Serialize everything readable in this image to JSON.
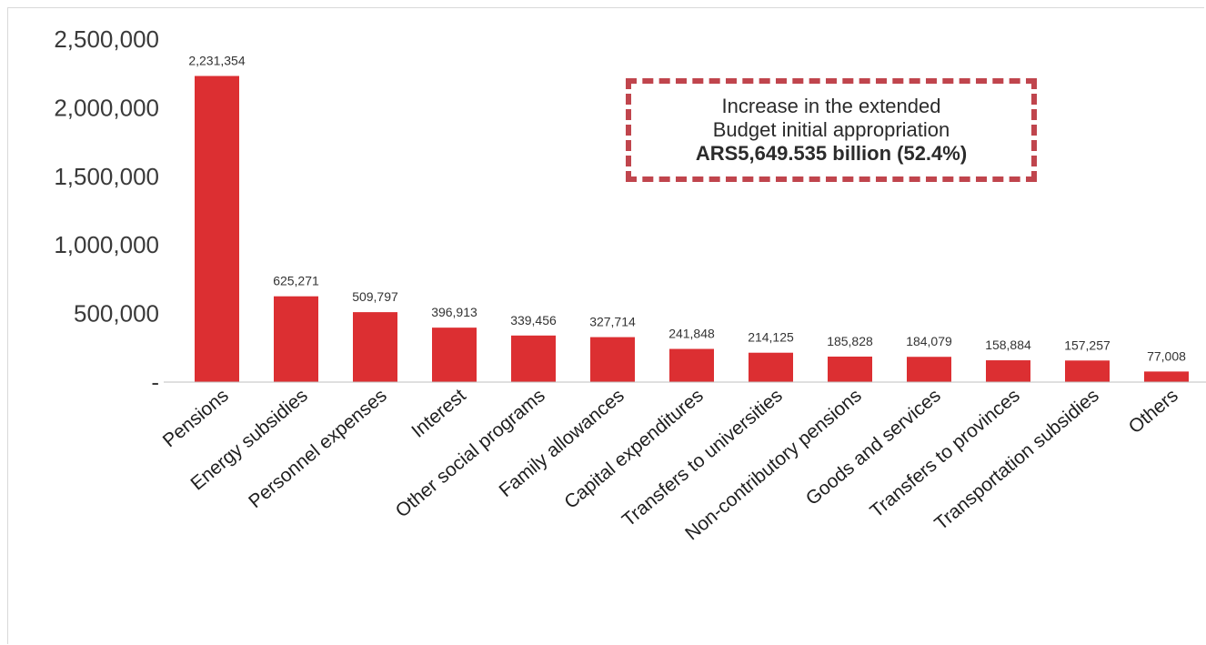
{
  "chart_data": {
    "type": "bar",
    "categories": [
      "Pensions",
      "Energy subsidies",
      "Personnel expenses",
      "Interest",
      "Other social programs",
      "Family allowances",
      "Capital expenditures",
      "Transfers to universities",
      "Non-contributory pensions",
      "Goods and services",
      "Transfers to provinces",
      "Transportation subsidies",
      "Others"
    ],
    "values": [
      2231354,
      625271,
      509797,
      396913,
      339456,
      327714,
      241848,
      214125,
      185828,
      184079,
      158884,
      157257,
      77008
    ],
    "data_labels": [
      "2,231,354",
      "625,271",
      "509,797",
      "396,913",
      "339,456",
      "327,714",
      "241,848",
      "214,125",
      "185,828",
      "184,079",
      "158,884",
      "157,257",
      "77,008"
    ],
    "yticks": [
      {
        "value": 0,
        "label": "-"
      },
      {
        "value": 500000,
        "label": "500,000"
      },
      {
        "value": 1000000,
        "label": "1,000,000"
      },
      {
        "value": 1500000,
        "label": "1,500,000"
      },
      {
        "value": 2000000,
        "label": "2,000,000"
      },
      {
        "value": 2500000,
        "label": "2,500,000"
      }
    ],
    "ylim": [
      0,
      2500000
    ],
    "grid": false,
    "bar_color": "#dc2f32",
    "title": "",
    "xlabel": "",
    "ylabel": ""
  },
  "callout": {
    "line1": "Increase in the extended",
    "line2": "Budget initial appropriation",
    "line3": "ARS5,649.535 billion (52.4%)",
    "border_color": "#c0454d"
  }
}
